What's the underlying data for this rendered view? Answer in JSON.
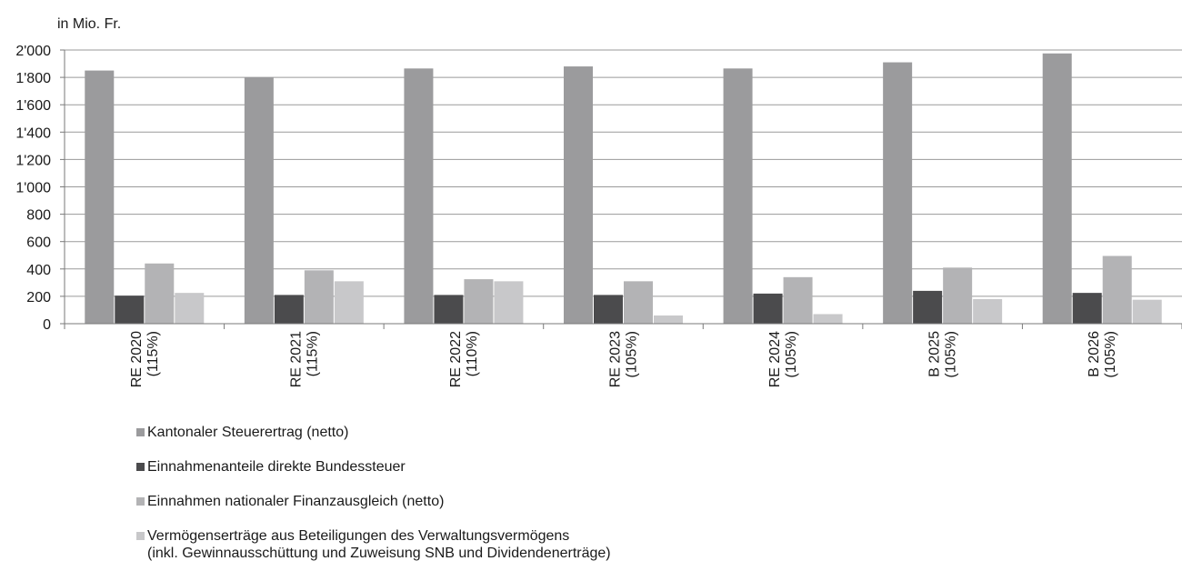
{
  "chart_data": {
    "type": "bar",
    "unit_label": "in Mio. Fr.",
    "categories": [
      [
        "RE 2020",
        "(115%)"
      ],
      [
        "RE 2021",
        "(115%)"
      ],
      [
        "RE 2022",
        "(110%)"
      ],
      [
        "RE 2023",
        "(105%)"
      ],
      [
        "RE 2024",
        "(105%)"
      ],
      [
        "B 2025",
        "(105%)"
      ],
      [
        "B 2026",
        "(105%)"
      ]
    ],
    "ylim": [
      0,
      2000
    ],
    "yticks": [
      "2'000",
      "1'800",
      "1'600",
      "1'400",
      "1'200",
      "1'000",
      "800",
      "600",
      "400",
      "200",
      "0"
    ],
    "ytick_values": [
      2000,
      1800,
      1600,
      1400,
      1200,
      1000,
      800,
      600,
      400,
      200,
      0
    ],
    "grid": true,
    "legend_position": "bottom-left",
    "series": [
      {
        "name": "Kantonaler Steuerertrag (netto)",
        "color": "#9b9b9d",
        "values": [
          1850,
          1800,
          1865,
          1880,
          1865,
          1910,
          1975
        ]
      },
      {
        "name": "Einnahmenanteile direkte Bundessteuer",
        "color": "#4b4b4d",
        "values": [
          205,
          210,
          210,
          210,
          220,
          240,
          225
        ]
      },
      {
        "name": "Einnahmen nationaler Finanzausgleich (netto)",
        "color": "#b3b3b5",
        "values": [
          440,
          390,
          325,
          310,
          340,
          410,
          495
        ]
      },
      {
        "name": "Vermögenserträge aus Beteiligungen des Verwaltungsvermögens\n(inkl. Gewinnausschüttung und Zuweisung SNB und Dividendenerträge)",
        "color": "#c8c8ca",
        "values": [
          225,
          310,
          310,
          60,
          70,
          180,
          175
        ]
      }
    ]
  }
}
